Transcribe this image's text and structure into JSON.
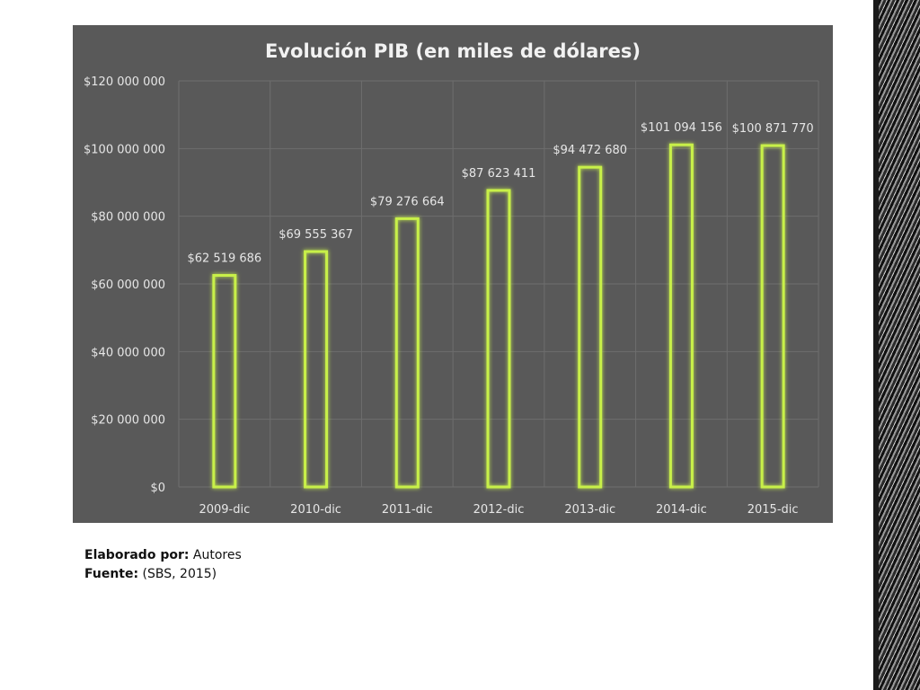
{
  "chart_data": {
    "type": "bar",
    "title": "Evolución PIB (en miles de dólares)",
    "categories": [
      "2009-dic",
      "2010-dic",
      "2011-dic",
      "2012-dic",
      "2013-dic",
      "2014-dic",
      "2015-dic"
    ],
    "values": [
      62519686,
      69555367,
      79276664,
      87623411,
      94472680,
      101094156,
      100871770
    ],
    "data_labels": [
      "$62 519 686",
      "$69 555 367",
      "$79 276 664",
      "$87 623 411",
      "$94 472 680",
      "$101 094 156",
      "$100 871 770"
    ],
    "yticks": [
      0,
      20000000,
      40000000,
      60000000,
      80000000,
      100000000,
      120000000
    ],
    "ytick_labels": [
      "$0",
      "$20 000 000",
      "$40 000 000",
      "$60 000 000",
      "$80 000 000",
      "$100 000 000",
      "$120 000 000"
    ],
    "ylim": [
      0,
      120000000
    ],
    "xlabel": "",
    "ylabel": "",
    "grid": true,
    "legend": "none",
    "colors": {
      "panel_bg": "#595959",
      "grid": "#6e6e6e",
      "bar_stroke": "#9acd32",
      "bar_glow": "#c8f04a",
      "text": "#e6e6e6"
    }
  },
  "notes": {
    "elaborado_key": "Elaborado por:",
    "elaborado_value": "Autores",
    "fuente_key": "Fuente:",
    "fuente_value": "(SBS, 2015)"
  }
}
